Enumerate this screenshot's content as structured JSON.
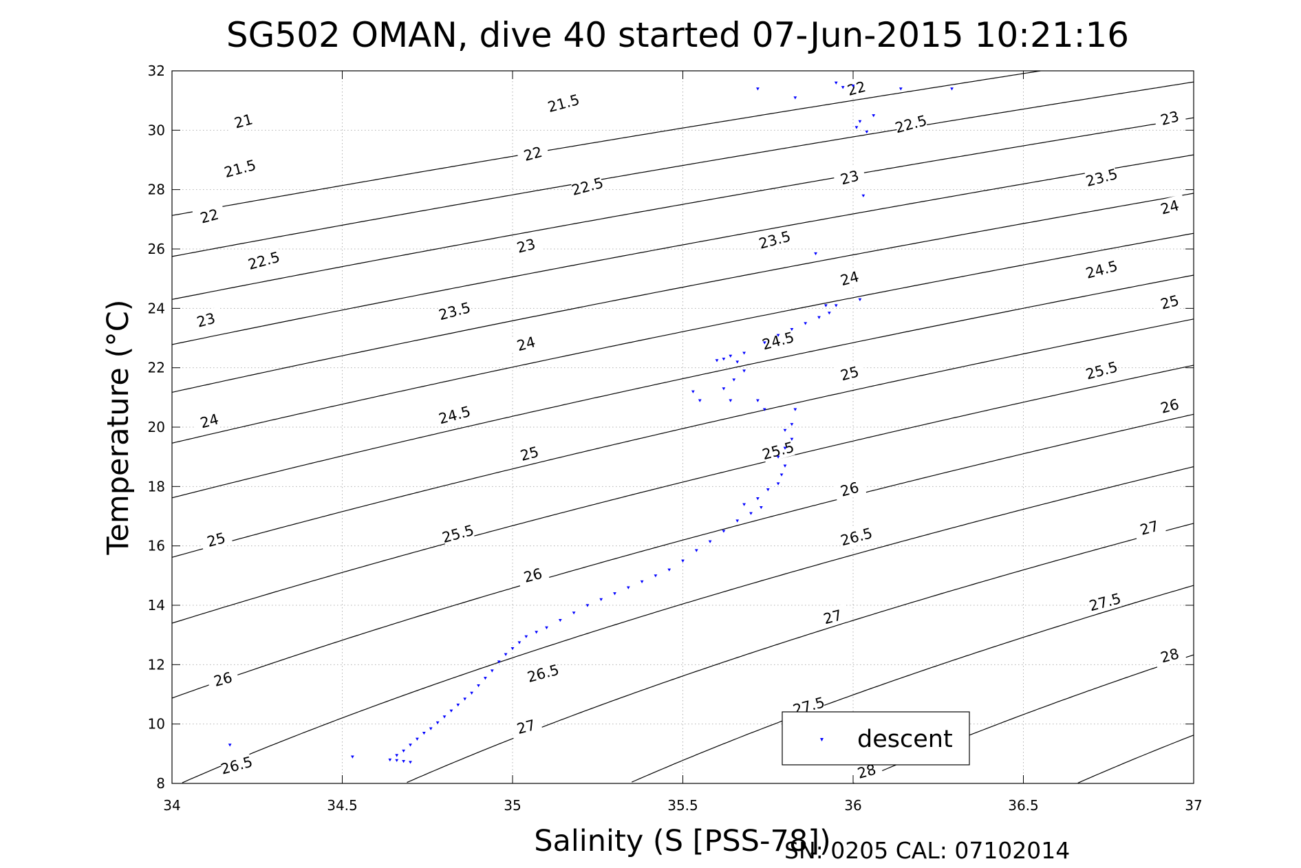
{
  "chart_data": {
    "type": "scatter",
    "title": "SG502 OMAN, dive 40 started 07-Jun-2015 10:21:16",
    "xlabel": "Salinity (S [PSS-78])",
    "ylabel": "Temperature (°C)",
    "footer": "SN: 0205  CAL: 07102014",
    "xlim": [
      34,
      37
    ],
    "ylim": [
      8,
      32
    ],
    "xticks": [
      "34",
      "34.5",
      "35",
      "35.5",
      "36",
      "36.5",
      "37"
    ],
    "yticks": [
      "8",
      "10",
      "12",
      "14",
      "16",
      "18",
      "20",
      "22",
      "24",
      "26",
      "28",
      "30",
      "32"
    ],
    "grid": true,
    "legend": {
      "position": "bottom-right",
      "entries": [
        "descent"
      ]
    },
    "series_color": "#0000ff",
    "contour_color": "#000000",
    "density_contours": {
      "levels": [
        "21",
        "21.5",
        "22",
        "22.5",
        "23",
        "23.5",
        "24",
        "24.5",
        "25",
        "25.5",
        "26",
        "26.5",
        "27",
        "27.5",
        "28"
      ],
      "label_positions": [
        {
          "label": "21",
          "s": 34.21,
          "t": 30.3
        },
        {
          "label": "21.5",
          "s": 34.2,
          "t": 28.7
        },
        {
          "label": "22",
          "s": 34.11,
          "t": 27.1
        },
        {
          "label": "22.5",
          "s": 34.27,
          "t": 25.6
        },
        {
          "label": "23",
          "s": 34.1,
          "t": 23.6
        },
        {
          "label": "24",
          "s": 34.11,
          "t": 20.2
        },
        {
          "label": "25",
          "s": 34.13,
          "t": 16.2
        },
        {
          "label": "26",
          "s": 34.15,
          "t": 11.5
        },
        {
          "label": "26.5",
          "s": 34.19,
          "t": 8.6
        },
        {
          "label": "21.5",
          "s": 35.15,
          "t": 30.9
        },
        {
          "label": "22",
          "s": 35.06,
          "t": 29.2
        },
        {
          "label": "22.5",
          "s": 35.22,
          "t": 28.1
        },
        {
          "label": "23",
          "s": 35.04,
          "t": 26.1
        },
        {
          "label": "23.5",
          "s": 34.83,
          "t": 23.9
        },
        {
          "label": "24",
          "s": 35.04,
          "t": 22.8
        },
        {
          "label": "24.5",
          "s": 34.83,
          "t": 20.4
        },
        {
          "label": "25",
          "s": 35.05,
          "t": 19.1
        },
        {
          "label": "25.5",
          "s": 34.84,
          "t": 16.4
        },
        {
          "label": "26",
          "s": 35.06,
          "t": 15.0
        },
        {
          "label": "26.5",
          "s": 35.09,
          "t": 11.7
        },
        {
          "label": "27",
          "s": 35.04,
          "t": 9.9
        },
        {
          "label": "23.5",
          "s": 35.77,
          "t": 26.3
        },
        {
          "label": "24.5",
          "s": 35.78,
          "t": 22.9
        },
        {
          "label": "25.5",
          "s": 35.78,
          "t": 19.2
        },
        {
          "label": "27.5",
          "s": 35.87,
          "t": 10.6
        },
        {
          "label": "22",
          "s": 36.01,
          "t": 31.4
        },
        {
          "label": "23",
          "s": 35.99,
          "t": 28.4
        },
        {
          "label": "24",
          "s": 35.99,
          "t": 25.0
        },
        {
          "label": "25",
          "s": 35.99,
          "t": 21.8
        },
        {
          "label": "26",
          "s": 35.99,
          "t": 17.9
        },
        {
          "label": "26.5",
          "s": 36.01,
          "t": 16.3
        },
        {
          "label": "27",
          "s": 35.94,
          "t": 13.6
        },
        {
          "label": "28",
          "s": 36.04,
          "t": 8.4
        },
        {
          "label": "22.5",
          "s": 36.17,
          "t": 30.2
        },
        {
          "label": "23",
          "s": 36.93,
          "t": 30.4
        },
        {
          "label": "23.5",
          "s": 36.73,
          "t": 28.4
        },
        {
          "label": "24",
          "s": 36.93,
          "t": 27.4
        },
        {
          "label": "24.5",
          "s": 36.73,
          "t": 25.3
        },
        {
          "label": "25",
          "s": 36.93,
          "t": 24.2
        },
        {
          "label": "25.5",
          "s": 36.73,
          "t": 21.9
        },
        {
          "label": "26",
          "s": 36.93,
          "t": 20.7
        },
        {
          "label": "27",
          "s": 36.87,
          "t": 16.6
        },
        {
          "label": "27.5",
          "s": 36.74,
          "t": 14.1
        },
        {
          "label": "28",
          "s": 36.93,
          "t": 12.3
        }
      ]
    },
    "series": [
      {
        "name": "descent",
        "marker": "triangle-down",
        "points": [
          [
            34.17,
            9.3
          ],
          [
            34.53,
            8.9
          ],
          [
            34.64,
            8.8
          ],
          [
            34.66,
            8.78
          ],
          [
            34.68,
            8.75
          ],
          [
            34.7,
            8.72
          ],
          [
            34.66,
            8.95
          ],
          [
            34.68,
            9.1
          ],
          [
            34.7,
            9.3
          ],
          [
            34.72,
            9.5
          ],
          [
            34.74,
            9.7
          ],
          [
            34.76,
            9.85
          ],
          [
            34.78,
            10.05
          ],
          [
            34.8,
            10.25
          ],
          [
            34.82,
            10.45
          ],
          [
            34.84,
            10.65
          ],
          [
            34.86,
            10.85
          ],
          [
            34.88,
            11.05
          ],
          [
            34.9,
            11.3
          ],
          [
            34.92,
            11.55
          ],
          [
            34.94,
            11.8
          ],
          [
            34.96,
            12.1
          ],
          [
            34.98,
            12.35
          ],
          [
            35.0,
            12.55
          ],
          [
            35.02,
            12.75
          ],
          [
            35.04,
            12.95
          ],
          [
            35.07,
            13.1
          ],
          [
            35.1,
            13.25
          ],
          [
            35.14,
            13.5
          ],
          [
            35.18,
            13.75
          ],
          [
            35.22,
            14.0
          ],
          [
            35.26,
            14.2
          ],
          [
            35.3,
            14.4
          ],
          [
            35.34,
            14.6
          ],
          [
            35.38,
            14.8
          ],
          [
            35.42,
            15.0
          ],
          [
            35.46,
            15.2
          ],
          [
            35.5,
            15.5
          ],
          [
            35.54,
            15.85
          ],
          [
            35.58,
            16.15
          ],
          [
            35.62,
            16.5
          ],
          [
            35.66,
            16.85
          ],
          [
            35.7,
            17.1
          ],
          [
            35.73,
            17.3
          ],
          [
            35.68,
            17.4
          ],
          [
            35.72,
            17.6
          ],
          [
            35.75,
            17.9
          ],
          [
            35.78,
            18.1
          ],
          [
            35.79,
            18.4
          ],
          [
            35.8,
            18.7
          ],
          [
            35.78,
            19.0
          ],
          [
            35.8,
            19.3
          ],
          [
            35.82,
            19.6
          ],
          [
            35.8,
            19.9
          ],
          [
            35.82,
            20.1
          ],
          [
            35.83,
            20.6
          ],
          [
            35.74,
            20.6
          ],
          [
            35.72,
            20.9
          ],
          [
            35.64,
            20.9
          ],
          [
            35.55,
            20.9
          ],
          [
            35.53,
            21.2
          ],
          [
            35.62,
            21.3
          ],
          [
            35.65,
            21.6
          ],
          [
            35.68,
            21.9
          ],
          [
            35.66,
            22.2
          ],
          [
            35.62,
            22.3
          ],
          [
            35.6,
            22.25
          ],
          [
            35.64,
            22.4
          ],
          [
            35.68,
            22.5
          ],
          [
            35.74,
            22.85
          ],
          [
            35.78,
            23.1
          ],
          [
            35.82,
            23.3
          ],
          [
            35.86,
            23.5
          ],
          [
            35.9,
            23.7
          ],
          [
            35.93,
            23.85
          ],
          [
            35.92,
            24.1
          ],
          [
            35.95,
            24.1
          ],
          [
            36.02,
            24.3
          ],
          [
            35.89,
            25.85
          ],
          [
            36.03,
            27.8
          ],
          [
            36.01,
            30.1
          ],
          [
            36.04,
            29.95
          ],
          [
            36.06,
            30.5
          ],
          [
            36.02,
            30.3
          ],
          [
            35.83,
            31.1
          ],
          [
            35.72,
            31.4
          ],
          [
            35.95,
            31.6
          ],
          [
            35.97,
            31.45
          ],
          [
            36.0,
            31.5
          ],
          [
            36.14,
            31.4
          ],
          [
            36.29,
            31.4
          ]
        ]
      }
    ]
  }
}
